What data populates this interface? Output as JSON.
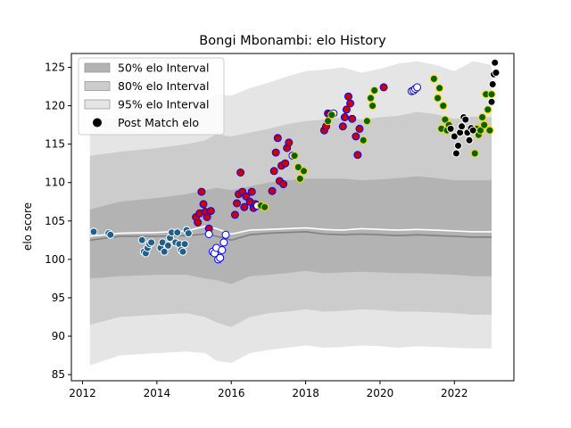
{
  "chart_data": {
    "type": "scatter",
    "title": "Bongi Mbonambi: elo History",
    "xlabel": "",
    "ylabel": "elo score",
    "xlim": [
      2011.7,
      2023.6
    ],
    "ylim": [
      84.2,
      126.8
    ],
    "xticks": [
      2012,
      2014,
      2016,
      2018,
      2020,
      2022
    ],
    "yticks": [
      85,
      90,
      95,
      100,
      105,
      110,
      115,
      120,
      125
    ],
    "grid": false,
    "legend_position": "top-left",
    "legend": [
      "50% elo Interval",
      "80% elo Interval",
      "95% elo Interval",
      "Post Match elo"
    ],
    "colors": {
      "band50": "#b3b3b3",
      "band80": "#cccccc",
      "band95": "#e5e5e5",
      "median": "#808080",
      "mean": "#ffffff"
    },
    "bands": {
      "x": [
        2012.2,
        2013.0,
        2014.0,
        2014.8,
        2015.3,
        2015.6,
        2016.0,
        2016.5,
        2017.0,
        2017.5,
        2018.0,
        2018.5,
        2019.0,
        2019.5,
        2020.0,
        2020.5,
        2021.0,
        2021.5,
        2022.0,
        2022.5,
        2023.0
      ],
      "p95_lo": [
        86.2,
        87.5,
        87.8,
        88.0,
        87.8,
        86.8,
        86.5,
        87.8,
        88.2,
        88.5,
        88.8,
        88.5,
        88.6,
        88.8,
        88.7,
        88.5,
        88.7,
        88.6,
        88.5,
        88.4,
        88.4
      ],
      "p95_hi": [
        117.8,
        118.5,
        119.0,
        119.5,
        120.5,
        121.5,
        121.3,
        122.3,
        123.0,
        123.8,
        124.5,
        124.7,
        125.0,
        124.3,
        124.8,
        125.5,
        125.8,
        125.3,
        124.5,
        125.8,
        125.3
      ],
      "p80_lo": [
        91.5,
        92.5,
        92.8,
        93.0,
        92.5,
        91.8,
        91.2,
        92.5,
        93.0,
        93.2,
        93.5,
        93.2,
        93.3,
        93.5,
        93.4,
        93.2,
        93.2,
        93.1,
        93.0,
        92.8,
        92.8
      ],
      "p80_hi": [
        113.5,
        114.0,
        114.5,
        115.0,
        115.5,
        116.3,
        116.0,
        116.5,
        117.0,
        117.6,
        118.0,
        118.2,
        118.5,
        118.2,
        118.5,
        118.7,
        119.2,
        118.9,
        118.3,
        118.6,
        118.5
      ],
      "p50_lo": [
        97.5,
        97.8,
        98.0,
        98.0,
        97.5,
        97.3,
        96.8,
        97.8,
        98.0,
        98.2,
        98.5,
        98.2,
        98.3,
        98.4,
        98.3,
        98.2,
        98.2,
        98.1,
        98.0,
        97.8,
        97.8
      ],
      "p50_hi": [
        106.5,
        107.5,
        108.0,
        108.5,
        109.0,
        109.3,
        109.0,
        109.5,
        110.0,
        110.3,
        110.5,
        110.5,
        110.5,
        110.3,
        110.4,
        110.6,
        110.8,
        110.6,
        110.3,
        110.3,
        110.3
      ],
      "median": [
        102.5,
        103.0,
        103.0,
        103.1,
        103.3,
        103.0,
        102.5,
        103.2,
        103.4,
        103.5,
        103.6,
        103.3,
        103.2,
        103.3,
        103.2,
        103.1,
        103.2,
        103.1,
        103.0,
        102.9,
        102.9
      ],
      "mean": [
        103.0,
        103.4,
        103.5,
        103.7,
        104.3,
        104.0,
        103.3,
        103.8,
        103.9,
        104.0,
        104.1,
        103.9,
        103.8,
        104.0,
        103.9,
        103.8,
        103.9,
        103.8,
        103.7,
        103.6,
        103.6
      ]
    },
    "series": [
      {
        "fill": "#1f5f8b",
        "edge": "#ffffff",
        "x": [
          2012.3,
          2012.7,
          2012.75
        ],
        "y": [
          103.6,
          103.4,
          103.2
        ]
      },
      {
        "fill": "#1f5f8b",
        "edge": "#ffffff",
        "x": [
          2013.6,
          2013.65,
          2013.7,
          2013.75,
          2013.8,
          2013.85,
          2014.1,
          2014.15,
          2014.2,
          2014.3,
          2014.35,
          2014.4,
          2014.5,
          2014.55,
          2014.6,
          2014.65,
          2014.7,
          2014.75,
          2014.8,
          2014.85
        ],
        "y": [
          102.5,
          101.0,
          100.8,
          101.5,
          102.0,
          102.2,
          101.5,
          102.2,
          101.0,
          101.8,
          102.8,
          103.5,
          102.2,
          103.5,
          102.0,
          101.2,
          101.0,
          102.0,
          103.8,
          103.4
        ]
      },
      {
        "fill": "#cc0000",
        "edge": "#0000ff",
        "x": [
          2015.05,
          2015.1,
          2015.15,
          2015.2,
          2015.25,
          2015.3,
          2015.35,
          2015.4,
          2015.45,
          2016.1,
          2016.15,
          2016.2,
          2016.25,
          2016.3,
          2016.35,
          2016.4,
          2016.5,
          2016.55,
          2016.6,
          2016.65,
          2017.1,
          2017.15,
          2017.2,
          2017.25,
          2017.3,
          2017.35,
          2017.4,
          2017.45,
          2017.5,
          2017.55,
          2018.5,
          2018.55,
          2018.6,
          2018.65,
          2019.0,
          2019.05,
          2019.1,
          2019.15,
          2019.2,
          2019.25,
          2019.35,
          2019.4,
          2019.45,
          2020.1
        ],
        "y": [
          105.5,
          104.8,
          106.0,
          108.8,
          107.2,
          106.2,
          105.5,
          104.0,
          106.3,
          105.8,
          107.3,
          108.5,
          111.3,
          108.8,
          106.8,
          108.2,
          107.5,
          108.8,
          106.7,
          107.2,
          108.9,
          111.5,
          113.9,
          115.8,
          110.2,
          112.2,
          109.8,
          112.5,
          114.5,
          115.2,
          116.8,
          117.3,
          119.0,
          118.9,
          117.3,
          118.5,
          119.5,
          121.2,
          120.3,
          118.3,
          116.0,
          113.6,
          117.0,
          122.4
        ]
      },
      {
        "fill": "#ffffff",
        "edge": "#0000ff",
        "x": [
          2015.4,
          2015.5,
          2015.55,
          2015.6,
          2015.65,
          2015.7,
          2015.75,
          2015.8,
          2015.85,
          2016.7,
          2017.65,
          2018.75,
          2020.85,
          2020.9,
          2020.95,
          2021.0
        ],
        "y": [
          103.3,
          101.0,
          100.8,
          101.5,
          100.0,
          100.2,
          101.2,
          102.2,
          103.2,
          107.0,
          113.5,
          119.0,
          121.9,
          122.0,
          122.2,
          122.4
        ]
      },
      {
        "fill": "#006400",
        "edge": "#ffd700",
        "x": [
          2016.8,
          2016.9,
          2017.7,
          2017.8,
          2017.85,
          2017.95,
          2018.6,
          2018.7,
          2019.55,
          2019.65,
          2019.75,
          2019.8,
          2019.85,
          2021.45,
          2021.55,
          2021.6,
          2021.65,
          2021.7,
          2021.75,
          2021.8,
          2021.85,
          2022.55,
          2022.6,
          2022.65,
          2022.7,
          2022.75,
          2022.8,
          2022.85,
          2022.9,
          2022.95,
          2023.0
        ],
        "y": [
          107.0,
          106.8,
          113.5,
          112.0,
          110.5,
          111.5,
          118.0,
          118.8,
          115.5,
          118.0,
          121.0,
          120.0,
          122.0,
          123.5,
          121.0,
          122.3,
          117.0,
          120.0,
          118.2,
          116.8,
          117.5,
          113.8,
          117.0,
          116.2,
          116.8,
          118.5,
          117.5,
          121.5,
          119.5,
          116.8,
          121.5
        ]
      },
      {
        "fill": "#000000",
        "edge": "#ffffff",
        "x": [
          2021.9,
          2022.0,
          2022.05,
          2022.1,
          2022.15,
          2022.2,
          2022.25,
          2022.3,
          2022.35,
          2022.4,
          2022.45,
          2022.5,
          2023.0,
          2023.03,
          2023.06,
          2023.09,
          2023.12
        ],
        "y": [
          117.0,
          116.0,
          113.8,
          114.8,
          116.5,
          117.3,
          118.5,
          118.2,
          116.5,
          115.5,
          117.1,
          116.8,
          120.5,
          122.8,
          124.1,
          125.6,
          124.3
        ]
      }
    ]
  }
}
